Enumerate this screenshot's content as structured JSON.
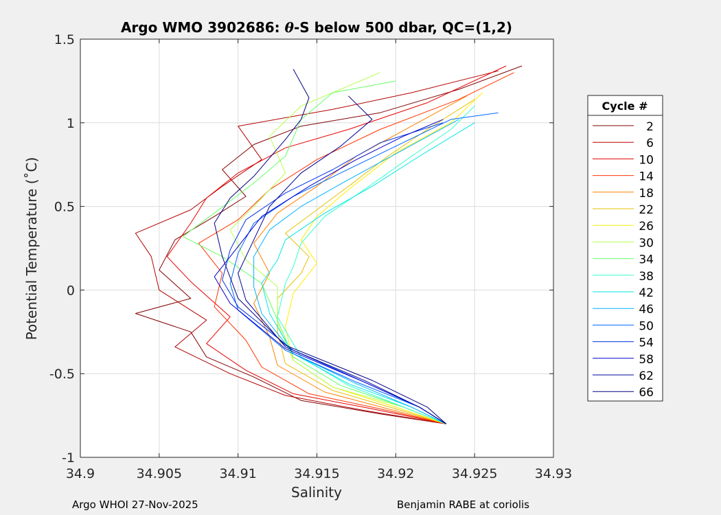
{
  "chart_data": {
    "type": "line",
    "title_prefix": "Argo WMO 3902686: ",
    "title_symbol": "θ",
    "title_suffix": "-S below 500 dbar,  QC=(1,2)",
    "xlabel": "Salinity",
    "ylabel": "Potential Temperature (˚C)",
    "xlim": [
      34.9,
      34.93
    ],
    "ylim": [
      -1,
      1.5
    ],
    "xticks": [
      34.9,
      34.905,
      34.91,
      34.915,
      34.92,
      34.925,
      34.93
    ],
    "xtick_labels": [
      "34.9",
      "34.905",
      "34.91",
      "34.915",
      "34.92",
      "34.925",
      "34.93"
    ],
    "yticks": [
      -1,
      -0.5,
      0,
      0.5,
      1,
      1.5
    ],
    "ytick_labels": [
      "-1",
      "-0.5",
      "0",
      "0.5",
      "1",
      "1.5"
    ],
    "grid": true,
    "legend_title": "Cycle #",
    "legend_position": "right",
    "legend": [
      {
        "label": "2",
        "color": "#800000"
      },
      {
        "label": "6",
        "color": "#b30000"
      },
      {
        "label": "10",
        "color": "#e60000"
      },
      {
        "label": "14",
        "color": "#ff3300"
      },
      {
        "label": "18",
        "color": "#ff8000"
      },
      {
        "label": "22",
        "color": "#e6c000"
      },
      {
        "label": "26",
        "color": "#ffee00"
      },
      {
        "label": "30",
        "color": "#b3ff4d"
      },
      {
        "label": "34",
        "color": "#66ff66"
      },
      {
        "label": "38",
        "color": "#33ffcc"
      },
      {
        "label": "42",
        "color": "#00e6e6"
      },
      {
        "label": "46",
        "color": "#00b3ff"
      },
      {
        "label": "50",
        "color": "#0066ff"
      },
      {
        "label": "54",
        "color": "#0033e6"
      },
      {
        "label": "58",
        "color": "#0000cc"
      },
      {
        "label": "62",
        "color": "#000099"
      },
      {
        "label": "66",
        "color": "#000080"
      }
    ],
    "series": [
      {
        "name": "2",
        "points": [
          [
            34.9232,
            -0.8
          ],
          [
            34.919,
            -0.74
          ],
          [
            34.914,
            -0.66
          ],
          [
            34.911,
            -0.52
          ],
          [
            34.908,
            -0.4
          ],
          [
            34.907,
            -0.25
          ],
          [
            34.9035,
            -0.14
          ],
          [
            34.907,
            -0.05
          ],
          [
            34.905,
            0.12
          ],
          [
            34.906,
            0.3
          ],
          [
            34.9085,
            0.44
          ],
          [
            34.9105,
            0.56
          ],
          [
            34.909,
            0.72
          ],
          [
            34.911,
            0.87
          ],
          [
            34.914,
            0.98
          ],
          [
            34.919,
            1.06
          ],
          [
            34.924,
            1.2
          ],
          [
            34.928,
            1.34
          ]
        ]
      },
      {
        "name": "6",
        "points": [
          [
            34.9232,
            -0.8
          ],
          [
            34.918,
            -0.72
          ],
          [
            34.913,
            -0.63
          ],
          [
            34.9095,
            -0.5
          ],
          [
            34.906,
            -0.34
          ],
          [
            34.908,
            -0.18
          ],
          [
            34.905,
            0.0
          ],
          [
            34.9045,
            0.2
          ],
          [
            34.9035,
            0.34
          ],
          [
            34.907,
            0.48
          ],
          [
            34.909,
            0.62
          ],
          [
            34.9115,
            0.78
          ],
          [
            34.91,
            0.98
          ],
          [
            34.916,
            1.08
          ],
          [
            34.921,
            1.18
          ],
          [
            34.9265,
            1.31
          ]
        ]
      },
      {
        "name": "10",
        "points": [
          [
            34.9232,
            -0.8
          ],
          [
            34.9185,
            -0.71
          ],
          [
            34.9135,
            -0.62
          ],
          [
            34.9105,
            -0.48
          ],
          [
            34.908,
            -0.32
          ],
          [
            34.9095,
            -0.16
          ],
          [
            34.907,
            0.05
          ],
          [
            34.9055,
            0.2
          ],
          [
            34.907,
            0.4
          ],
          [
            34.908,
            0.55
          ],
          [
            34.91,
            0.7
          ],
          [
            34.913,
            0.85
          ],
          [
            34.917,
            0.96
          ],
          [
            34.922,
            1.12
          ],
          [
            34.927,
            1.34
          ]
        ]
      },
      {
        "name": "14",
        "points": [
          [
            34.9232,
            -0.8
          ],
          [
            34.919,
            -0.71
          ],
          [
            34.9145,
            -0.62
          ],
          [
            34.9115,
            -0.46
          ],
          [
            34.9105,
            -0.3
          ],
          [
            34.9085,
            -0.1
          ],
          [
            34.909,
            0.1
          ],
          [
            34.9075,
            0.28
          ],
          [
            34.91,
            0.42
          ],
          [
            34.912,
            0.6
          ],
          [
            34.915,
            0.78
          ],
          [
            34.919,
            0.96
          ],
          [
            34.924,
            1.14
          ],
          [
            34.9275,
            1.3
          ]
        ]
      },
      {
        "name": "18",
        "points": [
          [
            34.9232,
            -0.8
          ],
          [
            34.9195,
            -0.71
          ],
          [
            34.9155,
            -0.61
          ],
          [
            34.9125,
            -0.45
          ],
          [
            34.912,
            -0.28
          ],
          [
            34.911,
            -0.08
          ],
          [
            34.912,
            0.1
          ],
          [
            34.911,
            0.28
          ],
          [
            34.9125,
            0.46
          ],
          [
            34.915,
            0.62
          ],
          [
            34.9175,
            0.8
          ],
          [
            34.921,
            0.98
          ],
          [
            34.9245,
            1.16
          ]
        ]
      },
      {
        "name": "22",
        "points": [
          [
            34.9232,
            -0.8
          ],
          [
            34.92,
            -0.71
          ],
          [
            34.916,
            -0.6
          ],
          [
            34.913,
            -0.44
          ],
          [
            34.9125,
            -0.25
          ],
          [
            34.9125,
            -0.05
          ],
          [
            34.914,
            0.1
          ],
          [
            34.9145,
            0.2
          ],
          [
            34.913,
            0.34
          ],
          [
            34.915,
            0.48
          ],
          [
            34.917,
            0.62
          ],
          [
            34.9195,
            0.8
          ],
          [
            34.922,
            0.96
          ],
          [
            34.925,
            1.14
          ]
        ]
      },
      {
        "name": "26",
        "points": [
          [
            34.9232,
            -0.8
          ],
          [
            34.92,
            -0.7
          ],
          [
            34.916,
            -0.58
          ],
          [
            34.9135,
            -0.42
          ],
          [
            34.913,
            -0.22
          ],
          [
            34.9135,
            -0.02
          ],
          [
            34.915,
            0.16
          ],
          [
            34.914,
            0.3
          ],
          [
            34.915,
            0.44
          ],
          [
            34.917,
            0.6
          ],
          [
            34.92,
            0.82
          ],
          [
            34.9235,
            1.0
          ],
          [
            34.9255,
            1.18
          ]
        ]
      },
      {
        "name": "30",
        "points": [
          [
            34.9232,
            -0.8
          ],
          [
            34.9205,
            -0.7
          ],
          [
            34.916,
            -0.58
          ],
          [
            34.9135,
            -0.42
          ],
          [
            34.9125,
            -0.2
          ],
          [
            34.9125,
            0.02
          ],
          [
            34.9105,
            0.18
          ],
          [
            34.9095,
            0.36
          ],
          [
            34.911,
            0.5
          ],
          [
            34.913,
            0.7
          ],
          [
            34.912,
            0.92
          ],
          [
            34.914,
            1.1
          ],
          [
            34.919,
            1.3
          ]
        ]
      },
      {
        "name": "34",
        "points": [
          [
            34.9232,
            -0.8
          ],
          [
            34.9205,
            -0.7
          ],
          [
            34.9165,
            -0.57
          ],
          [
            34.9135,
            -0.4
          ],
          [
            34.9125,
            -0.18
          ],
          [
            34.9115,
            0.04
          ],
          [
            34.909,
            0.2
          ],
          [
            34.9065,
            0.32
          ],
          [
            34.9085,
            0.46
          ],
          [
            34.911,
            0.64
          ],
          [
            34.913,
            0.8
          ],
          [
            34.914,
            1.02
          ],
          [
            34.916,
            1.18
          ],
          [
            34.92,
            1.25
          ]
        ]
      },
      {
        "name": "38",
        "points": [
          [
            34.9232,
            -0.8
          ],
          [
            34.9205,
            -0.7
          ],
          [
            34.917,
            -0.57
          ],
          [
            34.914,
            -0.4
          ],
          [
            34.9125,
            -0.16
          ],
          [
            34.913,
            0.04
          ],
          [
            34.9135,
            0.14
          ],
          [
            34.914,
            0.28
          ],
          [
            34.9155,
            0.44
          ],
          [
            34.918,
            0.6
          ],
          [
            34.921,
            0.8
          ],
          [
            34.9235,
            0.96
          ],
          [
            34.925,
            1.1
          ]
        ]
      },
      {
        "name": "42",
        "points": [
          [
            34.9232,
            -0.8
          ],
          [
            34.921,
            -0.7
          ],
          [
            34.917,
            -0.56
          ],
          [
            34.9135,
            -0.38
          ],
          [
            34.912,
            -0.14
          ],
          [
            34.9115,
            0.04
          ],
          [
            34.9125,
            0.18
          ],
          [
            34.913,
            0.3
          ],
          [
            34.9155,
            0.46
          ],
          [
            34.9185,
            0.62
          ],
          [
            34.9215,
            0.8
          ],
          [
            34.925,
            1.0
          ]
        ]
      },
      {
        "name": "46",
        "points": [
          [
            34.9232,
            -0.8
          ],
          [
            34.921,
            -0.7
          ],
          [
            34.9175,
            -0.56
          ],
          [
            34.9135,
            -0.38
          ],
          [
            34.9115,
            -0.14
          ],
          [
            34.911,
            0.02
          ],
          [
            34.911,
            0.2
          ],
          [
            34.912,
            0.36
          ],
          [
            34.914,
            0.5
          ],
          [
            34.917,
            0.66
          ],
          [
            34.9205,
            0.84
          ],
          [
            34.924,
            1.02
          ]
        ]
      },
      {
        "name": "50",
        "points": [
          [
            34.9232,
            -0.8
          ],
          [
            34.9215,
            -0.7
          ],
          [
            34.9175,
            -0.55
          ],
          [
            34.913,
            -0.36
          ],
          [
            34.91,
            -0.12
          ],
          [
            34.9095,
            0.04
          ],
          [
            34.91,
            0.22
          ],
          [
            34.911,
            0.4
          ],
          [
            34.9135,
            0.56
          ],
          [
            34.9165,
            0.7
          ],
          [
            34.92,
            0.86
          ],
          [
            34.9235,
            1.02
          ],
          [
            34.9265,
            1.06
          ]
        ]
      },
      {
        "name": "54",
        "points": [
          [
            34.9232,
            -0.8
          ],
          [
            34.9215,
            -0.7
          ],
          [
            34.918,
            -0.55
          ],
          [
            34.9135,
            -0.36
          ],
          [
            34.91,
            -0.1
          ],
          [
            34.909,
            0.06
          ],
          [
            34.9095,
            0.24
          ],
          [
            34.9105,
            0.42
          ],
          [
            34.913,
            0.58
          ],
          [
            34.916,
            0.72
          ],
          [
            34.919,
            0.88
          ],
          [
            34.923,
            1.0
          ]
        ]
      },
      {
        "name": "58",
        "points": [
          [
            34.9232,
            -0.8
          ],
          [
            34.9215,
            -0.7
          ],
          [
            34.918,
            -0.55
          ],
          [
            34.913,
            -0.35
          ],
          [
            34.9095,
            -0.08
          ],
          [
            34.9085,
            0.08
          ],
          [
            34.91,
            0.26
          ],
          [
            34.9115,
            0.44
          ],
          [
            34.9145,
            0.62
          ],
          [
            34.9175,
            0.78
          ],
          [
            34.9205,
            0.92
          ],
          [
            34.923,
            1.02
          ]
        ]
      },
      {
        "name": "62",
        "points": [
          [
            34.9232,
            -0.8
          ],
          [
            34.9215,
            -0.7
          ],
          [
            34.918,
            -0.54
          ],
          [
            34.913,
            -0.34
          ],
          [
            34.9105,
            -0.06
          ],
          [
            34.91,
            0.1
          ],
          [
            34.911,
            0.3
          ],
          [
            34.912,
            0.5
          ],
          [
            34.914,
            0.7
          ],
          [
            34.9165,
            0.86
          ],
          [
            34.9185,
            1.02
          ],
          [
            34.917,
            1.16
          ]
        ]
      },
      {
        "name": "66",
        "points": [
          [
            34.9232,
            -0.8
          ],
          [
            34.922,
            -0.7
          ],
          [
            34.9185,
            -0.54
          ],
          [
            34.913,
            -0.33
          ],
          [
            34.91,
            -0.05
          ],
          [
            34.909,
            0.2
          ],
          [
            34.9085,
            0.4
          ],
          [
            34.9095,
            0.55
          ],
          [
            34.911,
            0.68
          ],
          [
            34.913,
            0.9
          ],
          [
            34.914,
            1.02
          ],
          [
            34.9145,
            1.15
          ],
          [
            34.9135,
            1.32
          ]
        ]
      }
    ]
  },
  "footer": {
    "left": "Argo WHOI 27-Nov-2025",
    "right": "Benjamin RABE at coriolis"
  }
}
